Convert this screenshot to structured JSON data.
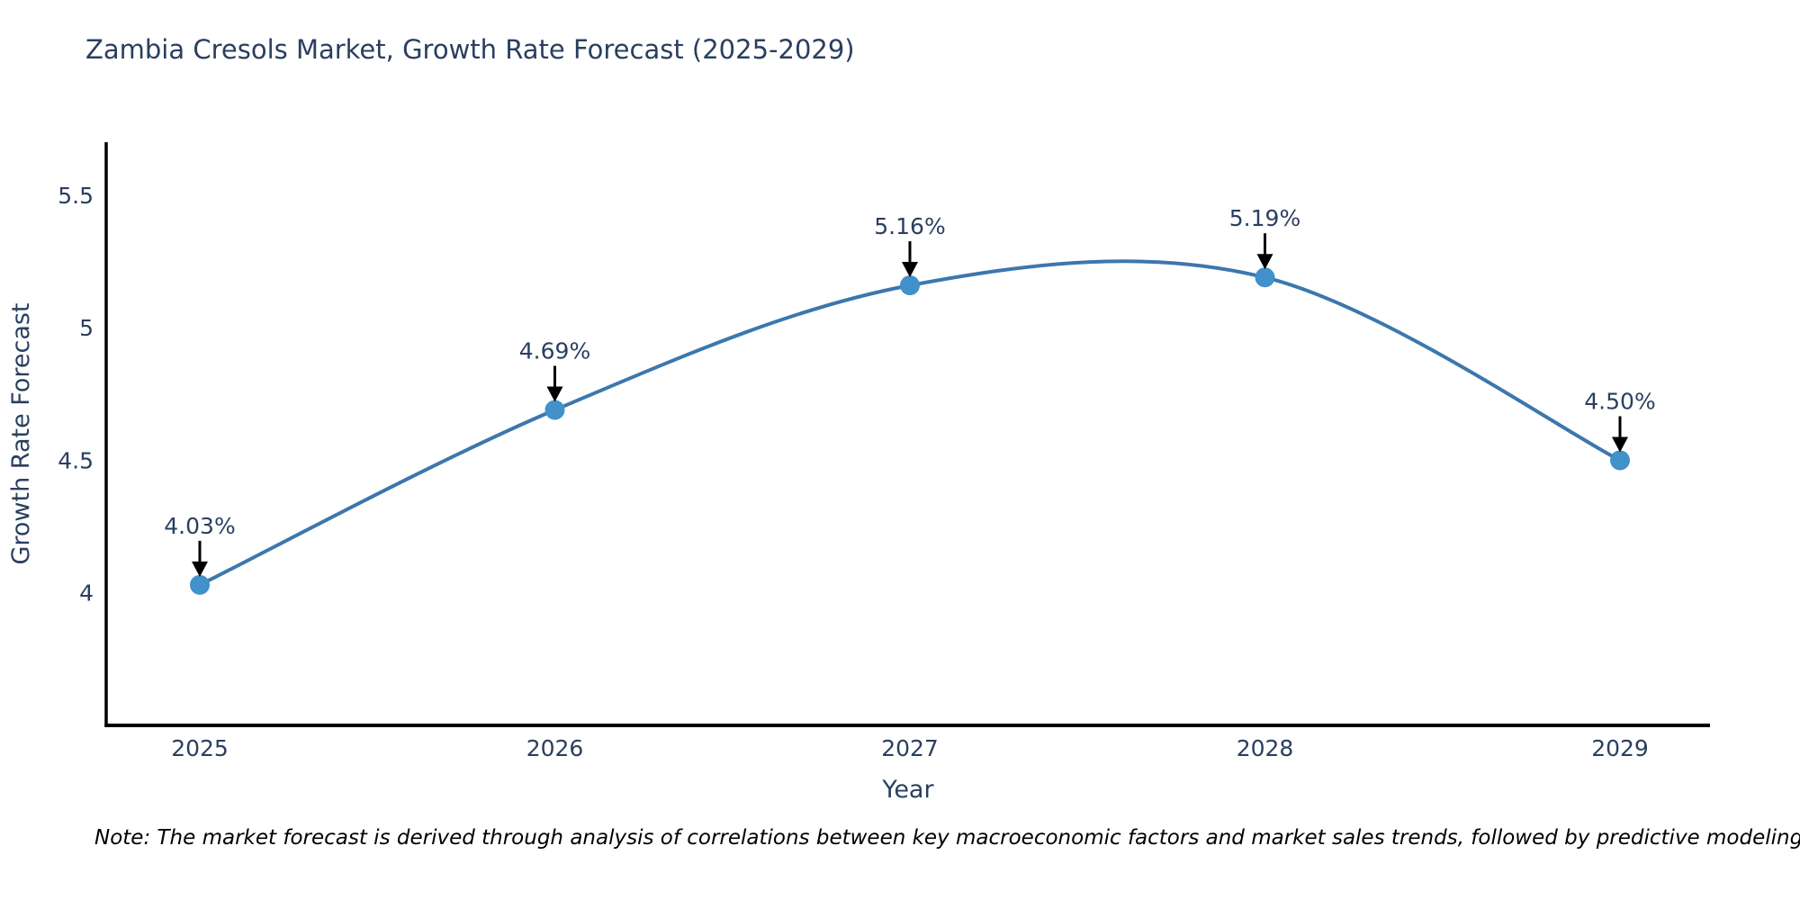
{
  "page": {
    "title": "Zambia Cresols Market, Growth Rate Forecast (2025-2029)",
    "note": "Note: The market forecast is derived through analysis of correlations between key macroeconomic factors and market sales trends, followed by predictive modeling to project future sales"
  },
  "chart_data": {
    "type": "line",
    "title": "Zambia Cresols Market, Growth Rate Forecast (2025-2029)",
    "xlabel": "Year",
    "ylabel": "Growth Rate Forecast",
    "x": [
      2025,
      2026,
      2027,
      2028,
      2029
    ],
    "series": [
      {
        "name": "Growth Rate Forecast",
        "values": [
          4.03,
          4.69,
          5.16,
          5.19,
          4.5
        ]
      }
    ],
    "point_labels": [
      "4.03%",
      "4.69%",
      "5.16%",
      "5.19%",
      "4.50%"
    ],
    "xticks": [
      "2025",
      "2026",
      "2027",
      "2028",
      "2029"
    ],
    "yticks": [
      4,
      4.5,
      5,
      5.5
    ],
    "ytick_labels": [
      "4",
      "4.5",
      "5",
      "5.5"
    ],
    "ylim": [
      3.5,
      5.7
    ],
    "grid": false,
    "legend": "none",
    "line_shape": "spline",
    "colors": {
      "line": "#3c77ad",
      "marker": "#4191ca",
      "arrow": "#000000",
      "text": "#2a3f5f",
      "axis": "#000000",
      "background": "#ffffff"
    }
  }
}
